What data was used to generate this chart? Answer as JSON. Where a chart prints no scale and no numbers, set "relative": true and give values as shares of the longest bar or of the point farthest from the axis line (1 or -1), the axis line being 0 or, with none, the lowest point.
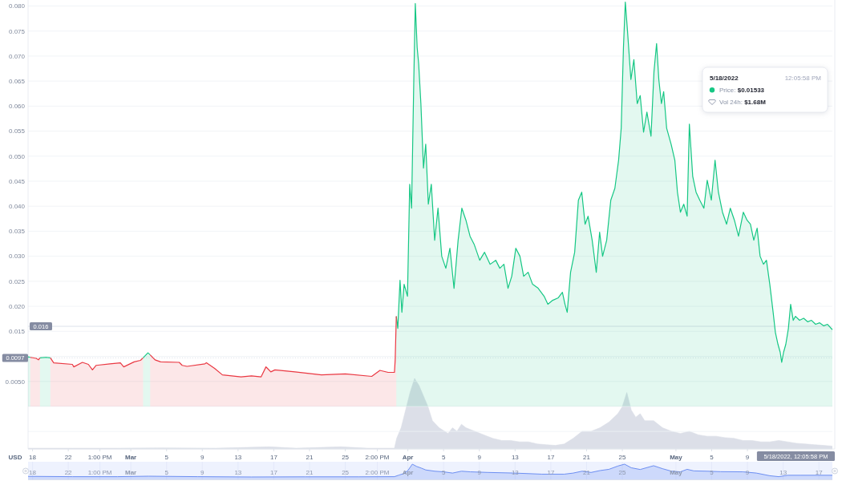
{
  "chart_data": [
    {
      "type": "area",
      "ylabel": "USD",
      "tick_labels": "y",
      "xlim": [
        "2022-02-17T12:05",
        "2022-05-18T12:05"
      ],
      "ylim": [
        -0.0085,
        0.0812
      ],
      "yticks": [
        {
          "value": 0.08,
          "label": "0.080"
        },
        0.075,
        {
          "value": 0.07,
          "label": "0.070"
        },
        0.065,
        {
          "value": 0.06,
          "label": "0.060"
        },
        0.055,
        {
          "value": 0.05,
          "label": "0.050"
        },
        0.045,
        {
          "value": 0.04,
          "label": "0.040"
        },
        0.035,
        {
          "value": 0.03,
          "label": "0.030"
        },
        0.025,
        {
          "value": 0.02,
          "label": "0.020"
        },
        0.015,
        {
          "value": 0.01,
          "label": null
        },
        {
          "value": 0.005,
          "label": "0.0050"
        },
        {
          "value": 0,
          "label": null
        },
        {
          "value": -0.005,
          "label": null
        }
      ],
      "grid": "y",
      "ref_lines": [
        {
          "axis": "y",
          "value": 0.016,
          "label": "0.016"
        },
        {
          "axis": "y",
          "value": 0.0097,
          "label": "0.0097",
          "line_style": "dotted"
        }
      ],
      "annotations": [
        "5/18/2022, 12:05:58 PM",
        "5/18/2022",
        "12:05:58 PM",
        "Price: $0.01533",
        "Vol 24h: $1.68M"
      ],
      "series": [
        {
          "color": "#16c784",
          "x": [
            "2022-02-17T12:05",
            "2022-02-17T18:00",
            "2022-02-18T10:00",
            "2022-02-18T20:00",
            "2022-02-19T12:00",
            "2022-02-20T00:00",
            "2022-02-20T09:00",
            "2022-03-02T09:00",
            "2022-03-02T22:00",
            "2022-03-03T04:00",
            "2022-03-03T17:00",
            "2022-03-30T17:00",
            "2022-03-30T21:00",
            "2022-03-31T03:00",
            "2022-03-31T08:00",
            "2022-03-31T14:00",
            "2022-03-31T23:00",
            "2022-04-01T05:00",
            "2022-04-01T10:00",
            "2022-04-01T16:00",
            "2022-04-01T20:00",
            "2022-04-02T01:00",
            "2022-04-02T05:00",
            "2022-04-02T11:00",
            "2022-04-02T18:00",
            "2022-04-03T00:00",
            "2022-04-03T07:00",
            "2022-04-03T15:00",
            "2022-04-04T00:00",
            "2022-04-04T09:00",
            "2022-04-04T19:00",
            "2022-04-05T06:00",
            "2022-04-05T17:00",
            "2022-04-06T04:00",
            "2022-04-06T15:00",
            "2022-04-07T01:00",
            "2022-04-07T12:00",
            "2022-04-07T23:00",
            "2022-04-08T10:00",
            "2022-04-09T01:00",
            "2022-04-09T14:00",
            "2022-04-10T05:00",
            "2022-04-10T20:00",
            "2022-04-11T07:00",
            "2022-04-11T18:00",
            "2022-04-12T05:00",
            "2022-04-12T15:00",
            "2022-04-13T02:00",
            "2022-04-13T13:00",
            "2022-04-13T23:00",
            "2022-04-14T11:00",
            "2022-04-14T23:00",
            "2022-04-15T14:00",
            "2022-04-16T06:00",
            "2022-04-16T16:00",
            "2022-04-17T05:00",
            "2022-04-17T20:00",
            "2022-04-18T07:00",
            "2022-04-18T14:00",
            "2022-04-18T20:00",
            "2022-04-19T05:00",
            "2022-04-19T16:00",
            "2022-04-20T02:00",
            "2022-04-20T11:00",
            "2022-04-20T20:00",
            "2022-04-21T04:00",
            "2022-04-21T15:00",
            "2022-04-22T02:00",
            "2022-04-22T11:00",
            "2022-04-22T19:00",
            "2022-04-23T06:00",
            "2022-04-23T17:00",
            "2022-04-24T04:00",
            "2022-04-24T14:00",
            "2022-04-24T21:00",
            "2022-04-25T03:00",
            "2022-04-25T08:00",
            "2022-04-25T14:00",
            "2022-04-25T23:00",
            "2022-04-26T07:00",
            "2022-04-26T16:00",
            "2022-04-27T00:00",
            "2022-04-27T09:00",
            "2022-04-27T18:00",
            "2022-04-28T05:00",
            "2022-04-28T13:00",
            "2022-04-28T20:00",
            "2022-04-29T02:00",
            "2022-04-29T09:00",
            "2022-04-29T15:00",
            "2022-04-29T23:00",
            "2022-04-30T11:00",
            "2022-04-30T21:00",
            "2022-05-01T04:00",
            "2022-05-01T12:00",
            "2022-05-01T21:00",
            "2022-05-02T06:00",
            "2022-05-02T12:00",
            "2022-05-02T21:00",
            "2022-05-03T06:00",
            "2022-05-03T16:00",
            "2022-05-04T03:00",
            "2022-05-04T12:00",
            "2022-05-04T23:00",
            "2022-05-05T09:00",
            "2022-05-05T18:00",
            "2022-05-06T05:00",
            "2022-05-06T16:00",
            "2022-05-07T02:00",
            "2022-05-07T13:00",
            "2022-05-08T00:00",
            "2022-05-08T13:00",
            "2022-05-08T23:00",
            "2022-05-09T08:00",
            "2022-05-09T17:00",
            "2022-05-10T02:00",
            "2022-05-10T10:00",
            "2022-05-10T19:00",
            "2022-05-11T03:00",
            "2022-05-11T12:00",
            "2022-05-11T21:00",
            "2022-05-12T03:00",
            "2022-05-12T10:00",
            "2022-05-12T16:00",
            "2022-05-12T20:00",
            "2022-05-13T01:00",
            "2022-05-13T07:00",
            "2022-05-13T14:00",
            "2022-05-13T20:00",
            "2022-05-14T03:00",
            "2022-05-14T09:00",
            "2022-05-14T20:00",
            "2022-05-15T07:00",
            "2022-05-15T18:00",
            "2022-05-16T04:00",
            "2022-05-16T15:00",
            "2022-05-17T02:00",
            "2022-05-17T13:00",
            "2022-05-17T23:00",
            "2022-05-18T12:05"
          ],
          "values": [
            0.0099,
            0.0098,
            null,
            0.0097,
            0.0098,
            0.0097,
            null,
            0.0097,
            0.0107,
            0.0103,
            null,
            0.018,
            0.0156,
            0.0252,
            0.0188,
            0.0244,
            0.022,
            0.0444,
            0.0396,
            0.0653,
            0.0805,
            0.0717,
            0.0685,
            0.0605,
            0.0476,
            0.0524,
            0.0404,
            0.0444,
            0.0332,
            0.0396,
            0.03,
            0.0276,
            0.0316,
            0.0236,
            0.0332,
            0.0396,
            0.0372,
            0.034,
            0.0324,
            0.0292,
            0.0308,
            0.0284,
            0.0292,
            0.0276,
            0.0284,
            0.0236,
            0.026,
            0.0316,
            0.03,
            0.026,
            0.0268,
            0.0244,
            0.0236,
            0.022,
            0.0204,
            0.0212,
            0.0217,
            0.0228,
            0.0204,
            0.0188,
            0.0268,
            0.0308,
            0.0412,
            0.0428,
            0.0364,
            0.038,
            0.0332,
            0.0268,
            0.0348,
            0.03,
            0.0332,
            0.0412,
            0.0436,
            0.0492,
            0.0556,
            0.0717,
            0.0808,
            0.0749,
            0.0653,
            0.0693,
            0.0605,
            0.0621,
            0.0548,
            0.0588,
            0.054,
            0.0669,
            0.0725,
            0.0653,
            0.0605,
            0.0629,
            0.0556,
            0.0524,
            0.0492,
            0.0428,
            0.0388,
            0.0404,
            0.038,
            0.0564,
            0.046,
            0.0428,
            0.0412,
            0.0396,
            0.0452,
            0.0412,
            0.0492,
            0.0428,
            0.0388,
            0.0364,
            0.0396,
            0.0372,
            0.034,
            0.0388,
            0.0372,
            0.0364,
            0.0332,
            0.0356,
            0.03,
            0.0284,
            0.0292,
            0.0244,
            0.0188,
            0.0148,
            0.0124,
            0.0108,
            0.0088,
            0.0108,
            0.0124,
            0.0156,
            0.0204,
            0.0172,
            0.018,
            0.0172,
            0.0176,
            0.0169,
            0.0172,
            0.0164,
            0.0167,
            0.0161,
            0.0164,
            0.01533
          ]
        },
        {
          "color": "#ea3943",
          "x": [
            "2022-02-17T18:00",
            "2022-02-18T10:00",
            "2022-02-18T16:00",
            "2022-02-18T20:00",
            "2022-02-19T12:00",
            "2022-02-20T00:00",
            "2022-02-20T09:00",
            "2022-02-22T11:00",
            "2022-02-22T15:00",
            "2022-02-23T14:00",
            "2022-02-24T06:00",
            "2022-02-24T17:00",
            "2022-02-25T03:00",
            "2022-02-26T16:00",
            "2022-02-27T20:00",
            "2022-02-28T05:00",
            "2022-03-01T09:00",
            "2022-03-02T02:00",
            "2022-03-02T09:00",
            "2022-03-02T22:00",
            "2022-03-03T04:00",
            "2022-03-03T17:00",
            "2022-03-04T08:00",
            "2022-03-06T10:00",
            "2022-03-06T18:00",
            "2022-03-07T07:00",
            "2022-03-09T07:00",
            "2022-03-09T11:00",
            "2022-03-10T09:00",
            "2022-03-11T06:00",
            "2022-03-13T08:00",
            "2022-03-14T12:00",
            "2022-03-15T14:00",
            "2022-03-16T03:00",
            "2022-03-16T07:00",
            "2022-03-16T16:00",
            "2022-03-17T03:00",
            "2022-03-19T09:00",
            "2022-03-22T08:00",
            "2022-03-25T00:00",
            "2022-03-27T23:00",
            "2022-03-28T21:00",
            "2022-03-29T19:00",
            "2022-03-30T12:00",
            "2022-03-30T14:00",
            "2022-03-30T17:00"
          ],
          "values": [
            0.0098,
            0.0096,
            0.0093,
            0.0097,
            null,
            0.0097,
            0.0087,
            0.0084,
            0.0079,
            0.0088,
            0.0084,
            0.0073,
            0.0082,
            0.0085,
            0.0087,
            0.0079,
            0.0089,
            0.0092,
            0.0097,
            null,
            0.0103,
            0.0093,
            0.0089,
            0.0088,
            0.0082,
            0.008,
            0.0085,
            0.0087,
            0.0076,
            0.0063,
            0.0059,
            0.0061,
            0.0059,
            0.0079,
            0.0076,
            0.0069,
            0.0073,
            0.0069,
            0.0063,
            0.0065,
            0.006,
            0.0072,
            0.0068,
            0.0068,
            0.0093,
            0.018
          ]
        }
      ]
    },
    {
      "type": "area",
      "relative": true,
      "xlim": [
        "2022-02-17T12:05",
        "2022-05-18T12:05"
      ],
      "color": "#dcdfe8",
      "xticks": [
        {
          "value": "2022-02-18",
          "label": "18"
        },
        {
          "value": "2022-02-22",
          "label": "22"
        },
        {
          "value": "2022-02-25T13:00",
          "label": "1:00 PM"
        },
        {
          "value": "2022-03-01",
          "label": "Mar"
        },
        {
          "value": "2022-03-05",
          "label": "5"
        },
        {
          "value": "2022-03-09",
          "label": "9"
        },
        {
          "value": "2022-03-13",
          "label": "13"
        },
        {
          "value": "2022-03-17",
          "label": "17"
        },
        {
          "value": "2022-03-21",
          "label": "21"
        },
        {
          "value": "2022-03-25",
          "label": "25"
        },
        {
          "value": "2022-03-28T14:00",
          "label": "2:00 PM"
        },
        {
          "value": "2022-04-01",
          "label": "Apr"
        },
        {
          "value": "2022-04-05",
          "label": "5"
        },
        {
          "value": "2022-04-09",
          "label": "9"
        },
        {
          "value": "2022-04-13",
          "label": "13"
        },
        {
          "value": "2022-04-17",
          "label": "17"
        },
        {
          "value": "2022-04-21",
          "label": "21"
        },
        {
          "value": "2022-04-25",
          "label": "25"
        },
        {
          "value": "2022-05-01",
          "label": "May"
        },
        {
          "value": "2022-05-05",
          "label": "5"
        },
        {
          "value": "2022-05-09",
          "label": "9"
        }
      ],
      "x": [
        "2022-02-17T12:05",
        "2022-02-22T12:00",
        "2022-02-27T12:00",
        "2022-03-04T12:00",
        "2022-03-10T12:00",
        "2022-03-16T12:00",
        "2022-03-19T12:00",
        "2022-03-24T12:00",
        "2022-03-27T12:00",
        "2022-03-30T12:00",
        "2022-03-30T18:00",
        "2022-03-31T06:00",
        "2022-03-31T18:00",
        "2022-04-01T06:00",
        "2022-04-01T18:00",
        "2022-04-02T06:00",
        "2022-04-02T18:00",
        "2022-04-03T06:00",
        "2022-04-03T18:00",
        "2022-04-04T12:00",
        "2022-04-05T12:00",
        "2022-04-06T00:00",
        "2022-04-06T12:00",
        "2022-04-07T00:00",
        "2022-04-07T12:00",
        "2022-04-08T12:00",
        "2022-04-09T12:00",
        "2022-04-10T12:00",
        "2022-04-11T12:00",
        "2022-04-12T12:00",
        "2022-04-13T12:00",
        "2022-04-14T12:00",
        "2022-04-15T12:00",
        "2022-04-16T12:00",
        "2022-04-17T12:00",
        "2022-04-18T12:00",
        "2022-04-19T12:00",
        "2022-04-20T12:00",
        "2022-04-21T12:00",
        "2022-04-22T12:00",
        "2022-04-23T12:00",
        "2022-04-24T12:00",
        "2022-04-25T00:00",
        "2022-04-25T12:00",
        "2022-04-26T00:00",
        "2022-04-26T12:00",
        "2022-04-27T00:00",
        "2022-04-27T12:00",
        "2022-04-28T12:00",
        "2022-04-29T12:00",
        "2022-04-30T12:00",
        "2022-05-01T12:00",
        "2022-05-02T12:00",
        "2022-05-03T12:00",
        "2022-05-04T12:00",
        "2022-05-05T12:00",
        "2022-05-06T12:00",
        "2022-05-07T12:00",
        "2022-05-08T12:00",
        "2022-05-09T12:00",
        "2022-05-10T12:00",
        "2022-05-11T12:00",
        "2022-05-12T12:00",
        "2022-05-13T12:00",
        "2022-05-14T12:00",
        "2022-05-15T12:00",
        "2022-05-16T12:00",
        "2022-05-17T12:00",
        "2022-05-18T12:05"
      ],
      "values": [
        0.01,
        0.01,
        0.01,
        0.015,
        0.01,
        0.03,
        0.01,
        0.03,
        0.01,
        0.01,
        0.15,
        0.3,
        0.55,
        0.8,
        1,
        0.9,
        0.75,
        0.6,
        0.4,
        0.3,
        0.22,
        0.3,
        0.25,
        0.35,
        0.3,
        0.25,
        0.2,
        0.15,
        0.12,
        0.12,
        0.1,
        0.1,
        0.07,
        0.06,
        0.05,
        0.07,
        0.15,
        0.25,
        0.25,
        0.3,
        0.38,
        0.5,
        0.6,
        0.8,
        0.55,
        0.45,
        0.5,
        0.4,
        0.4,
        0.3,
        0.25,
        0.22,
        0.25,
        0.2,
        0.18,
        0.18,
        0.16,
        0.15,
        0.12,
        0.12,
        0.1,
        0.1,
        0.12,
        0.1,
        0.08,
        0.07,
        0.06,
        0.05,
        0.04
      ]
    },
    {
      "type": "area",
      "relative": true,
      "grid": "x",
      "xlim": [
        "2022-02-17T12:05",
        "2022-05-18T12:05"
      ],
      "color": "#6d8ff2",
      "xticks": [
        {
          "value": "2022-02-18",
          "label": "18"
        },
        {
          "value": "2022-02-22",
          "label": "22"
        },
        {
          "value": "2022-02-25T13:00",
          "label": "1:00 PM"
        },
        {
          "value": "2022-03-01",
          "label": "Mar"
        },
        {
          "value": "2022-03-05",
          "label": "5"
        },
        {
          "value": "2022-03-09",
          "label": "9"
        },
        {
          "value": "2022-03-13",
          "label": "13"
        },
        {
          "value": "2022-03-17",
          "label": "17"
        },
        {
          "value": "2022-03-21",
          "label": "21"
        },
        {
          "value": "2022-03-25",
          "label": "25"
        },
        {
          "value": "2022-03-28T14:00",
          "label": "2:00 PM"
        },
        {
          "value": "2022-04-01",
          "label": "Apr"
        },
        {
          "value": "2022-04-05",
          "label": "5"
        },
        {
          "value": "2022-04-09",
          "label": "9"
        },
        {
          "value": "2022-04-13",
          "label": "13"
        },
        {
          "value": "2022-04-17",
          "label": "17"
        },
        {
          "value": "2022-04-21",
          "label": "21"
        },
        {
          "value": "2022-04-25",
          "label": "25"
        },
        {
          "value": "2022-05-01",
          "label": "May"
        },
        {
          "value": "2022-05-05",
          "label": "5"
        },
        {
          "value": "2022-05-09",
          "label": "9"
        },
        {
          "value": "2022-05-13",
          "label": "13"
        },
        {
          "value": "2022-05-17",
          "label": "17"
        }
      ],
      "x": [
        "2022-02-17T12:05",
        "2022-02-22T12:00",
        "2022-02-27T12:00",
        "2022-03-03T00:00",
        "2022-03-08T12:00",
        "2022-03-14T12:00",
        "2022-03-20T12:00",
        "2022-03-26T12:00",
        "2022-03-30T12:00",
        "2022-03-31T00:00",
        "2022-03-31T12:00",
        "2022-04-01T00:00",
        "2022-04-01T12:00",
        "2022-04-02T00:00",
        "2022-04-02T12:00",
        "2022-04-03T00:00",
        "2022-04-04T00:00",
        "2022-04-05T00:00",
        "2022-04-06T00:00",
        "2022-04-07T00:00",
        "2022-04-08T00:00",
        "2022-04-10T00:00",
        "2022-04-13T00:00",
        "2022-04-16T00:00",
        "2022-04-18T12:00",
        "2022-04-19T12:00",
        "2022-04-20T12:00",
        "2022-04-21T12:00",
        "2022-04-22T12:00",
        "2022-04-23T12:00",
        "2022-04-24T12:00",
        "2022-04-25T06:00",
        "2022-04-26T00:00",
        "2022-04-27T00:00",
        "2022-04-28T12:00",
        "2022-04-29T12:00",
        "2022-04-30T12:00",
        "2022-05-01T12:00",
        "2022-05-02T06:00",
        "2022-05-03T00:00",
        "2022-05-04T12:00",
        "2022-05-06T00:00",
        "2022-05-08T12:00",
        "2022-05-10T00:00",
        "2022-05-11T12:00",
        "2022-05-12T12:00",
        "2022-05-13T12:00",
        "2022-05-15T00:00",
        "2022-05-18T12:05"
      ],
      "values": [
        0.22,
        0.2,
        0.2,
        0.23,
        0.2,
        0.18,
        0.19,
        0.19,
        0.2,
        0.3,
        0.39,
        0.59,
        1,
        0.85,
        0.75,
        0.63,
        0.55,
        0.51,
        0.43,
        0.55,
        0.51,
        0.47,
        0.43,
        0.36,
        0.36,
        0.43,
        0.55,
        0.47,
        0.59,
        0.67,
        0.88,
        1,
        0.77,
        0.66,
        0.9,
        0.71,
        0.55,
        0.51,
        0.67,
        0.57,
        0.55,
        0.52,
        0.51,
        0.43,
        0.26,
        0.2,
        0.29,
        0.29,
        0.29
      ]
    }
  ]
}
